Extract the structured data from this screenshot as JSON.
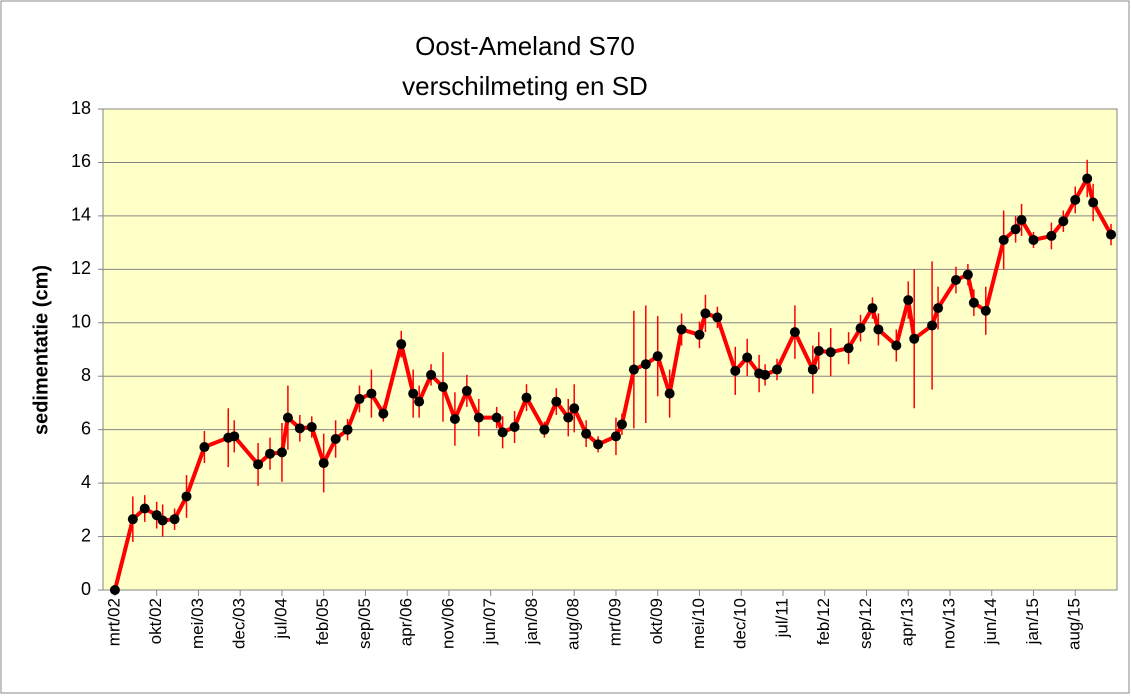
{
  "chart_data": {
    "type": "line",
    "title": "Oost-Ameland S70",
    "subtitle": "verschilmeting en SD",
    "ylabel": "sedimentatie (cm)",
    "color": "#ff0000",
    "marker_color": "#000000",
    "plot_background": "#ffffc8",
    "grid": true,
    "ylim": [
      0,
      18
    ],
    "yticks": [
      0,
      2,
      4,
      6,
      8,
      10,
      12,
      14,
      16,
      18
    ],
    "xlim": [
      "2002-01",
      "2016-03"
    ],
    "xticks": [
      {
        "value": "2002-03",
        "label": "mrt/02"
      },
      {
        "value": "2002-10",
        "label": "okt/02"
      },
      {
        "value": "2003-05",
        "label": "mei/03"
      },
      {
        "value": "2003-12",
        "label": "dec/03"
      },
      {
        "value": "2004-07",
        "label": "jul/04"
      },
      {
        "value": "2005-02",
        "label": "feb/05"
      },
      {
        "value": "2005-09",
        "label": "sep/05"
      },
      {
        "value": "2006-04",
        "label": "apr/06"
      },
      {
        "value": "2006-11",
        "label": "nov/06"
      },
      {
        "value": "2007-06",
        "label": "jun/07"
      },
      {
        "value": "2008-01",
        "label": "jan/08"
      },
      {
        "value": "2008-08",
        "label": "aug/08"
      },
      {
        "value": "2009-03",
        "label": "mrt/09"
      },
      {
        "value": "2009-10",
        "label": "okt/09"
      },
      {
        "value": "2010-05",
        "label": "mei/10"
      },
      {
        "value": "2010-12",
        "label": "dec/10"
      },
      {
        "value": "2011-07",
        "label": "jul/11"
      },
      {
        "value": "2012-02",
        "label": "feb/12"
      },
      {
        "value": "2012-09",
        "label": "sep/12"
      },
      {
        "value": "2013-04",
        "label": "apr/13"
      },
      {
        "value": "2013-11",
        "label": "nov/13"
      },
      {
        "value": "2014-06",
        "label": "jun/14"
      },
      {
        "value": "2015-01",
        "label": "jan/15"
      },
      {
        "value": "2015-08",
        "label": "aug/15"
      }
    ],
    "x": [
      "2002-03",
      "2002-06",
      "2002-08",
      "2002-10",
      "2002-11",
      "2003-01",
      "2003-03",
      "2003-06",
      "2003-10",
      "2003-11",
      "2004-03",
      "2004-05",
      "2004-07",
      "2004-08",
      "2004-10",
      "2004-12",
      "2005-02",
      "2005-04",
      "2005-06",
      "2005-08",
      "2005-10",
      "2005-12",
      "2006-03",
      "2006-05",
      "2006-06",
      "2006-08",
      "2006-10",
      "2006-12",
      "2007-02",
      "2007-04",
      "2007-07",
      "2007-08",
      "2007-10",
      "2007-12",
      "2008-03",
      "2008-05",
      "2008-07",
      "2008-08",
      "2008-10",
      "2008-12",
      "2009-03",
      "2009-04",
      "2009-06",
      "2009-08",
      "2009-10",
      "2009-12",
      "2010-02",
      "2010-05",
      "2010-06",
      "2010-08",
      "2010-11",
      "2011-01",
      "2011-03",
      "2011-04",
      "2011-06",
      "2011-09",
      "2011-12",
      "2012-01",
      "2012-03",
      "2012-06",
      "2012-08",
      "2012-10",
      "2012-11",
      "2013-02",
      "2013-04",
      "2013-05",
      "2013-08",
      "2013-09",
      "2013-12",
      "2014-02",
      "2014-03",
      "2014-05",
      "2014-08",
      "2014-10",
      "2014-11",
      "2015-01",
      "2015-04",
      "2015-06",
      "2015-08",
      "2015-10",
      "2015-11",
      "2016-02"
    ],
    "values": [
      0,
      2.65,
      3.05,
      2.8,
      2.6,
      2.65,
      3.5,
      5.35,
      5.7,
      5.75,
      4.7,
      5.1,
      5.15,
      6.45,
      6.05,
      6.1,
      4.75,
      5.65,
      6.0,
      7.15,
      7.35,
      6.6,
      9.2,
      7.35,
      7.05,
      8.05,
      7.6,
      6.4,
      7.45,
      6.45,
      6.45,
      5.9,
      6.1,
      7.2,
      6.0,
      7.05,
      6.45,
      6.8,
      5.85,
      5.45,
      5.75,
      6.2,
      8.25,
      8.45,
      8.75,
      7.35,
      9.75,
      9.55,
      10.35,
      10.2,
      8.2,
      8.7,
      8.1,
      8.05,
      8.25,
      9.65,
      8.25,
      8.95,
      8.9,
      9.05,
      9.8,
      10.55,
      9.75,
      9.15,
      10.85,
      9.4,
      9.9,
      10.55,
      11.6,
      11.8,
      10.75,
      10.45,
      13.1,
      13.5,
      13.85,
      13.1,
      13.25,
      13.8,
      14.6,
      15.4,
      14.5,
      13.3
    ],
    "errors": [
      0,
      0.85,
      0.5,
      0.5,
      0.6,
      0.4,
      0.8,
      0.6,
      1.1,
      0.6,
      0.8,
      0.6,
      1.1,
      1.2,
      0.5,
      0.4,
      1.1,
      0.7,
      0.4,
      0.5,
      0.9,
      0.3,
      0.5,
      0.9,
      0.6,
      0.4,
      1.3,
      1.0,
      0.6,
      0.7,
      0.4,
      0.6,
      0.6,
      0.5,
      0.3,
      0.5,
      0.7,
      0.9,
      0.5,
      0.3,
      0.7,
      0.4,
      2.2,
      2.2,
      1.5,
      0.9,
      0.6,
      0.5,
      0.7,
      0.4,
      0.9,
      0.7,
      0.7,
      0.4,
      0.4,
      1.0,
      0.9,
      0.7,
      0.9,
      0.6,
      0.5,
      0.4,
      0.6,
      0.6,
      0.7,
      2.6,
      2.4,
      0.8,
      0.5,
      0.4,
      0.5,
      0.9,
      1.1,
      0.5,
      0.6,
      0.3,
      0.5,
      0.4,
      0.5,
      0.7,
      0.7,
      0.4
    ]
  }
}
